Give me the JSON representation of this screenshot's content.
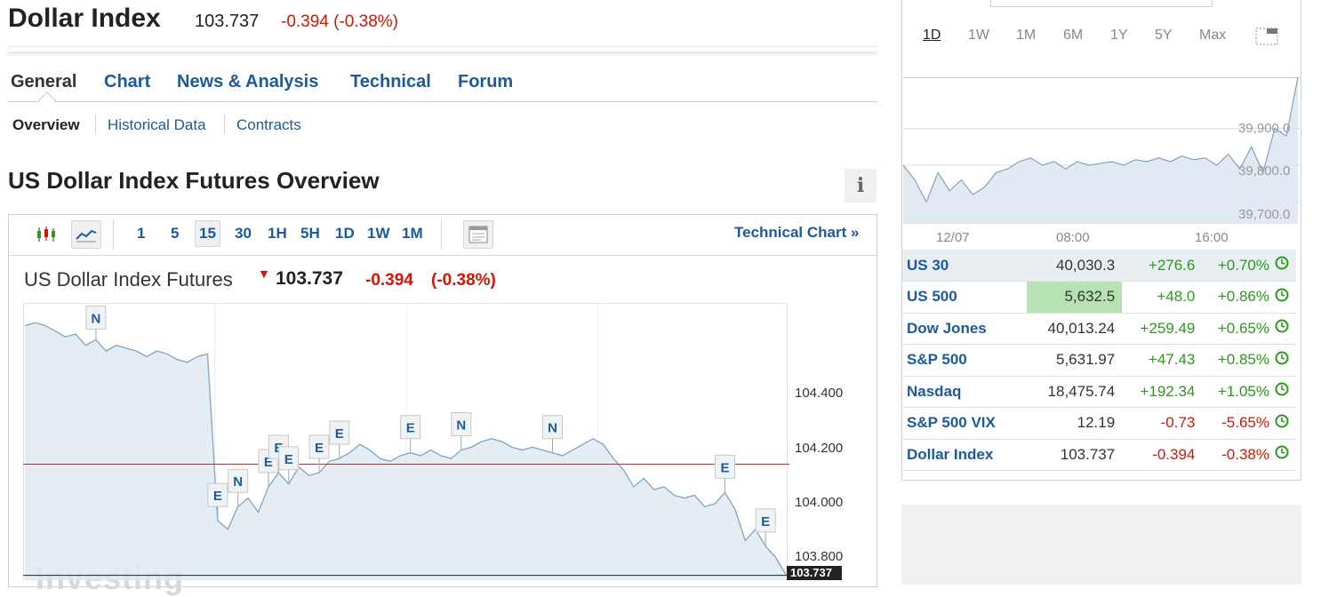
{
  "header": {
    "title": "Dollar Index",
    "price": "103.737",
    "change": "-0.394 (-0.38%)"
  },
  "tabs": [
    "General",
    "Chart",
    "News & Analysis",
    "Technical",
    "Forum"
  ],
  "subtabs": [
    "Overview",
    "Historical Data",
    "Contracts"
  ],
  "overview_title": "US Dollar Index Futures Overview",
  "info_label": "i",
  "toolbar": {
    "timeframes": [
      "1",
      "5",
      "15",
      "30",
      "1H",
      "5H",
      "1D",
      "1W",
      "1M"
    ],
    "selected_timeframe": "15",
    "icons": [
      "candlestick-icon",
      "line-chart-icon",
      "calendar-icon"
    ],
    "technical_chart_link": "Technical Chart »"
  },
  "instrument": {
    "name": "US Dollar Index Futures",
    "price": "103.737",
    "change": "-0.394",
    "change_pct": "(-0.38%)"
  },
  "main_chart_labels": {
    "y_ticks": [
      "104.400",
      "104.200",
      "104.000",
      "103.800"
    ],
    "last": "103.737",
    "watermark": "Investing",
    "markers": [
      "N",
      "E",
      "N",
      "E",
      "E",
      "E",
      "E",
      "E",
      "E",
      "N",
      "N",
      "E",
      "E"
    ]
  },
  "chart_data": [
    {
      "type": "area",
      "y_ticks": [
        104.4,
        104.2,
        104.0,
        103.8
      ],
      "ylim": [
        103.72,
        104.7
      ],
      "reference_line": 104.13,
      "last_value": 103.737,
      "values": [
        104.62,
        104.63,
        104.62,
        104.6,
        104.58,
        104.59,
        104.55,
        104.57,
        104.53,
        104.55,
        104.54,
        104.53,
        104.51,
        104.53,
        104.52,
        104.5,
        104.49,
        104.51,
        104.52,
        103.93,
        103.9,
        103.98,
        104.01,
        103.96,
        104.05,
        104.1,
        104.06,
        104.12,
        104.09,
        104.1,
        104.14,
        104.15,
        104.17,
        104.2,
        104.18,
        104.15,
        104.14,
        104.16,
        104.17,
        104.16,
        104.18,
        104.16,
        104.15,
        104.18,
        104.19,
        104.21,
        104.22,
        104.21,
        104.19,
        104.18,
        104.19,
        104.18,
        104.17,
        104.16,
        104.18,
        104.2,
        104.22,
        104.2,
        104.15,
        104.11,
        104.05,
        104.08,
        104.04,
        104.05,
        104.02,
        104.01,
        104.02,
        103.98,
        103.99,
        104.03,
        103.97,
        103.86,
        103.9,
        103.84,
        103.8,
        103.74
      ]
    },
    {
      "type": "area",
      "x_ticks": [
        "12/07",
        "08:00",
        "16:00"
      ],
      "y_ticks": [
        39900.0,
        39800.0,
        39700.0
      ],
      "ylim": [
        39640,
        40040
      ],
      "values": [
        39800,
        39760,
        39700,
        39780,
        39730,
        39760,
        39720,
        39740,
        39780,
        39790,
        39810,
        39820,
        39800,
        39810,
        39790,
        39810,
        39800,
        39805,
        39810,
        39800,
        39815,
        39810,
        39820,
        39810,
        39825,
        39815,
        39820,
        39800,
        39830,
        39790,
        39850,
        39780,
        39900,
        39880,
        40040
      ]
    }
  ],
  "mini_chart_labels": {
    "y_ticks": [
      "39,900.0",
      "39,800.0",
      "39,700.0"
    ],
    "x_ticks": [
      "12/07",
      "08:00",
      "16:00"
    ]
  },
  "ranges": [
    "1D",
    "1W",
    "1M",
    "6M",
    "1Y",
    "5Y",
    "Max"
  ],
  "selected_range": "1D",
  "indices": [
    {
      "name": "US 30",
      "last": "40,030.3",
      "chg": "+276.6",
      "pct": "+0.70%",
      "dir": "pos"
    },
    {
      "name": "US 500",
      "last": "5,632.5",
      "chg": "+48.0",
      "pct": "+0.86%",
      "dir": "pos"
    },
    {
      "name": "Dow Jones",
      "last": "40,013.24",
      "chg": "+259.49",
      "pct": "+0.65%",
      "dir": "pos"
    },
    {
      "name": "S&P 500",
      "last": "5,631.97",
      "chg": "+47.43",
      "pct": "+0.85%",
      "dir": "pos"
    },
    {
      "name": "Nasdaq",
      "last": "18,475.74",
      "chg": "+192.34",
      "pct": "+1.05%",
      "dir": "pos"
    },
    {
      "name": "S&P 500 VIX",
      "last": "12.19",
      "chg": "-0.73",
      "pct": "-5.65%",
      "dir": "neg"
    },
    {
      "name": "Dollar Index",
      "last": "103.737",
      "chg": "-0.394",
      "pct": "-0.38%",
      "dir": "neg"
    }
  ],
  "colors": {
    "link": "#1b5a9e",
    "down": "#d91400",
    "up": "#2a9a1c",
    "highlight": "#b7e2b4",
    "area": "#dde8f0",
    "line": "#7fa4c6"
  }
}
